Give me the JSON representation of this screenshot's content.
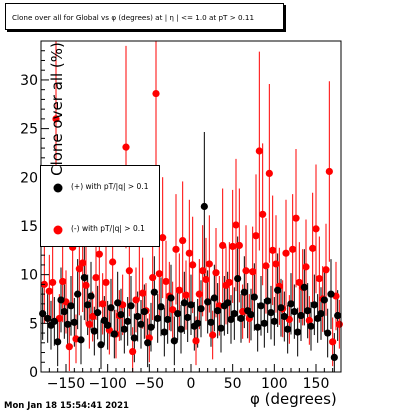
{
  "title": "Clone  over all for Global vs φ (degrees) at |  η | <= 1.0 at pT > 0.11",
  "timestamp": "Mon Jan 18 15:54:41 2021",
  "colors": {
    "neg": "#ff0000",
    "pos": "#000000",
    "frame": "#000000"
  },
  "chart_data": {
    "type": "scatter",
    "xlabel": "φ (degrees)",
    "ylabel": "Clone  over all (%)",
    "xlim": [
      -180,
      180
    ],
    "ylim": [
      0,
      34
    ],
    "xticks": [
      -150,
      -100,
      -50,
      0,
      50,
      100,
      150
    ],
    "xtick_labels": [
      "−150",
      "−100",
      "−50",
      "0",
      "50",
      "100",
      "150"
    ],
    "yticks": [
      0,
      5,
      10,
      15,
      20,
      25,
      30
    ],
    "yticks_labels": [
      "0",
      "5",
      "10",
      "15",
      "20",
      "25",
      "30"
    ],
    "grid": false,
    "legend": {
      "position": "left",
      "entries": [
        "(+) with pT/|q| > 0.1",
        "(-) with pT/|q| > 0.1"
      ]
    },
    "series": [
      {
        "name": "(+) with pT/|q| > 0.1",
        "color": "#000000",
        "x": [
          -178,
          -172,
          -168,
          -164,
          -160,
          -156,
          -152,
          -148,
          -144,
          -140,
          -136,
          -132,
          -128,
          -124,
          -120,
          -116,
          -112,
          -108,
          -104,
          -100,
          -96,
          -92,
          -88,
          -84,
          -80,
          -76,
          -72,
          -68,
          -64,
          -60,
          -56,
          -52,
          -48,
          -44,
          -40,
          -36,
          -32,
          -28,
          -24,
          -20,
          -16,
          -12,
          -8,
          -4,
          0,
          4,
          8,
          12,
          16,
          20,
          24,
          28,
          32,
          36,
          40,
          44,
          48,
          52,
          56,
          60,
          64,
          68,
          72,
          76,
          80,
          84,
          88,
          92,
          96,
          100,
          104,
          108,
          112,
          116,
          120,
          124,
          128,
          132,
          136,
          140,
          144,
          148,
          152,
          156,
          160,
          164,
          168,
          172,
          176
        ],
        "y": [
          6,
          5.5,
          4.8,
          5.2,
          3.1,
          7.4,
          6.2,
          4.9,
          6.8,
          5.1,
          8.0,
          3.3,
          9.7,
          6.9,
          7.8,
          4.2,
          6.1,
          2.8,
          5.3,
          4.8,
          6.6,
          3.9,
          7.1,
          5.9,
          4.4,
          5.2,
          6.8,
          3.5,
          5.7,
          4.9,
          6.2,
          3.0,
          4.6,
          8.2,
          5.5,
          6.7,
          4.1,
          5.4,
          7.6,
          3.2,
          6.0,
          4.4,
          7.1,
          5.6,
          6.9,
          4.7,
          5.0,
          6.5,
          17.0,
          7.2,
          5.1,
          7.6,
          6.3,
          4.5,
          6.8,
          7.1,
          5.4,
          6.0,
          9.6,
          5.5,
          8.2,
          6.3,
          5.9,
          7.7,
          4.6,
          6.8,
          5.0,
          7.3,
          6.1,
          5.2,
          8.4,
          6.6,
          5.7,
          4.4,
          7.0,
          6.2,
          4.1,
          5.8,
          8.7,
          6.3,
          4.7,
          6.9,
          5.5,
          6.0,
          7.4,
          4.0,
          8.0,
          1.5,
          5.8
        ]
      },
      {
        "name": "(-) with pT/|q| > 0.1",
        "color": "#ff0000",
        "x": [
          -176,
          -170,
          -166,
          -162,
          -158,
          -154,
          -150,
          -146,
          -142,
          -138,
          -134,
          -130,
          -126,
          -122,
          -118,
          -114,
          -110,
          -106,
          -102,
          -98,
          -94,
          -90,
          -86,
          -82,
          -78,
          -74,
          -70,
          -66,
          -62,
          -58,
          -54,
          -50,
          -46,
          -42,
          -38,
          -34,
          -30,
          -26,
          -22,
          -18,
          -14,
          -10,
          -6,
          -2,
          2,
          6,
          10,
          14,
          18,
          22,
          26,
          30,
          34,
          38,
          42,
          46,
          50,
          54,
          58,
          62,
          66,
          70,
          74,
          78,
          82,
          86,
          90,
          94,
          98,
          102,
          106,
          110,
          114,
          118,
          122,
          126,
          130,
          134,
          138,
          142,
          146,
          150,
          154,
          158,
          162,
          166,
          170,
          174,
          178
        ],
        "y": [
          9,
          8.3,
          9.2,
          26,
          5.5,
          9.3,
          7.2,
          2.6,
          12.8,
          3.4,
          10.6,
          11.2,
          8.9,
          4.9,
          5.7,
          9.7,
          12.1,
          7.0,
          9.2,
          4.3,
          11.3,
          3.9,
          5.8,
          6.9,
          23.1,
          10.4,
          2.1,
          7.4,
          13.3,
          8.1,
          6.3,
          3.5,
          9.7,
          28.6,
          10.1,
          13.8,
          9.3,
          7.8,
          6.4,
          12.6,
          8.4,
          13.5,
          7.9,
          12.2,
          11.0,
          3.2,
          8.0,
          10.4,
          9.5,
          11.1,
          3.8,
          10.2,
          6.8,
          13.0,
          8.9,
          9.2,
          12.9,
          15.1,
          13.0,
          6.2,
          10.4,
          5.5,
          10.3,
          14.0,
          22.7,
          16.2,
          10.9,
          20.4,
          12.5,
          11.1,
          8.8,
          6.5,
          12.2,
          5.4,
          12.6,
          15.8,
          9.2,
          8.7,
          10.8,
          5.3,
          12.7,
          14.7,
          9.6,
          7.5,
          10.5,
          20.6,
          3.1,
          7.8,
          4.9
        ]
      }
    ]
  }
}
